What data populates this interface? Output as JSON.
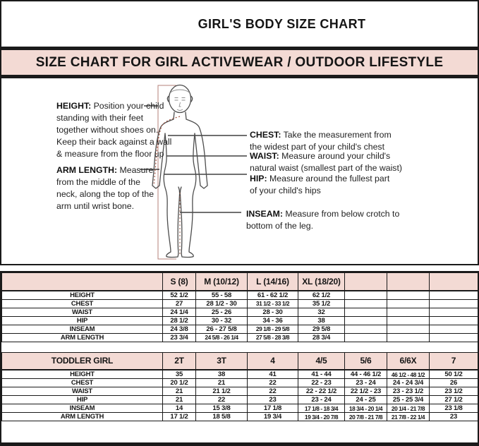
{
  "title": "GIRL'S BODY SIZE CHART",
  "banner": "SIZE CHART FOR GIRL ACTIVEWEAR / OUTDOOR LIFESTYLE",
  "colors": {
    "banner_bg": "#f3dad4",
    "table_header_bg": "#f3dad4",
    "border": "#1a1a1a",
    "sketch_outline": "#4d4d4d",
    "guide_line": "#b5827a",
    "dotted_measure": "#a3523f"
  },
  "diagram": {
    "figure": "child-body-outline-sketch",
    "notes": {
      "height": {
        "label": "HEIGHT:",
        "text": "Position your child\nstanding with their feet\ntogether without shoes on.\nKeep their back against a wall\n& measure from the floor up"
      },
      "arm": {
        "label": "ARM LENGTH:",
        "text": "Measure\nfrom the middle of the\nneck, along the top of the\narm until wrist bone."
      },
      "chest": {
        "label": "CHEST:",
        "text": "Take the measurement from\nthe widest part of your child's chest"
      },
      "waist": {
        "label": "WAIST:",
        "text": "Measure around your child's\nnatural waist (smallest part of the waist)"
      },
      "hip": {
        "label": "HIP:",
        "text": "Measure around the fullest part\nof your child's hips"
      },
      "inseam": {
        "label": "INSEAM:",
        "text": "Measure from below crotch to\nbottom of the leg."
      }
    }
  },
  "tables": [
    {
      "name": "girl-sizes",
      "headers": [
        "",
        "S (8)",
        "M (10/12)",
        "L (14/16)",
        "XL (18/20)",
        "",
        "",
        ""
      ],
      "rows": [
        [
          "HEIGHT",
          "52 1/2",
          "55 - 58",
          "61 - 62 1/2",
          "62 1/2",
          "",
          "",
          ""
        ],
        [
          "CHEST",
          "27",
          "28 1/2 - 30",
          "31 1/2 - 33 1/2",
          "35 1/2",
          "",
          "",
          ""
        ],
        [
          "WAIST",
          "24 1/4",
          "25 - 26",
          "28 - 30",
          "32",
          "",
          "",
          ""
        ],
        [
          "HIP",
          "28 1/2",
          "30 - 32",
          "34 - 36",
          "38",
          "",
          "",
          ""
        ],
        [
          "INSEAM",
          "24 3/8",
          "26 - 27 5/8",
          "29 1/8 - 29 5/8",
          "29 5/8",
          "",
          "",
          ""
        ],
        [
          "ARM LENGTH",
          "23 3/4",
          "24 5/8 - 26 1/4",
          "27 5/8 - 28 3/8",
          "28 3/4",
          "",
          "",
          ""
        ]
      ]
    },
    {
      "name": "toddler-girl-sizes",
      "headers": [
        "TODDLER GIRL",
        "2T",
        "3T",
        "4",
        "4/5",
        "5/6",
        "6/6X",
        "7"
      ],
      "rows": [
        [
          "HEIGHT",
          "35",
          "38",
          "41",
          "41 - 44",
          "44 - 46 1/2",
          "46 1/2 - 48 1/2",
          "50 1/2"
        ],
        [
          "CHEST",
          "20 1/2",
          "21",
          "22",
          "22 - 23",
          "23 - 24",
          "24 - 24 3/4",
          "26"
        ],
        [
          "WAIST",
          "21",
          "21 1/2",
          "22",
          "22 - 22 1/2",
          "22 1/2 - 23",
          "23 - 23 1/2",
          "23 1/2"
        ],
        [
          "HIP",
          "21",
          "22",
          "23",
          "23 - 24",
          "24 - 25",
          "25 - 25 3/4",
          "27 1/2"
        ],
        [
          "INSEAM",
          "14",
          "15 3/8",
          "17 1/8",
          "17 1/8 - 18 3/4",
          "18 3/4 - 20 1/4",
          "20 1/4 - 21 7/8",
          "23 1/8"
        ],
        [
          "ARM LENGTH",
          "17 1/2",
          "18 5/8",
          "19 3/4",
          "19 3/4 - 20 7/8",
          "20 7/8 - 21 7/8",
          "21 7/8 - 22 1/4",
          "23"
        ]
      ]
    }
  ]
}
